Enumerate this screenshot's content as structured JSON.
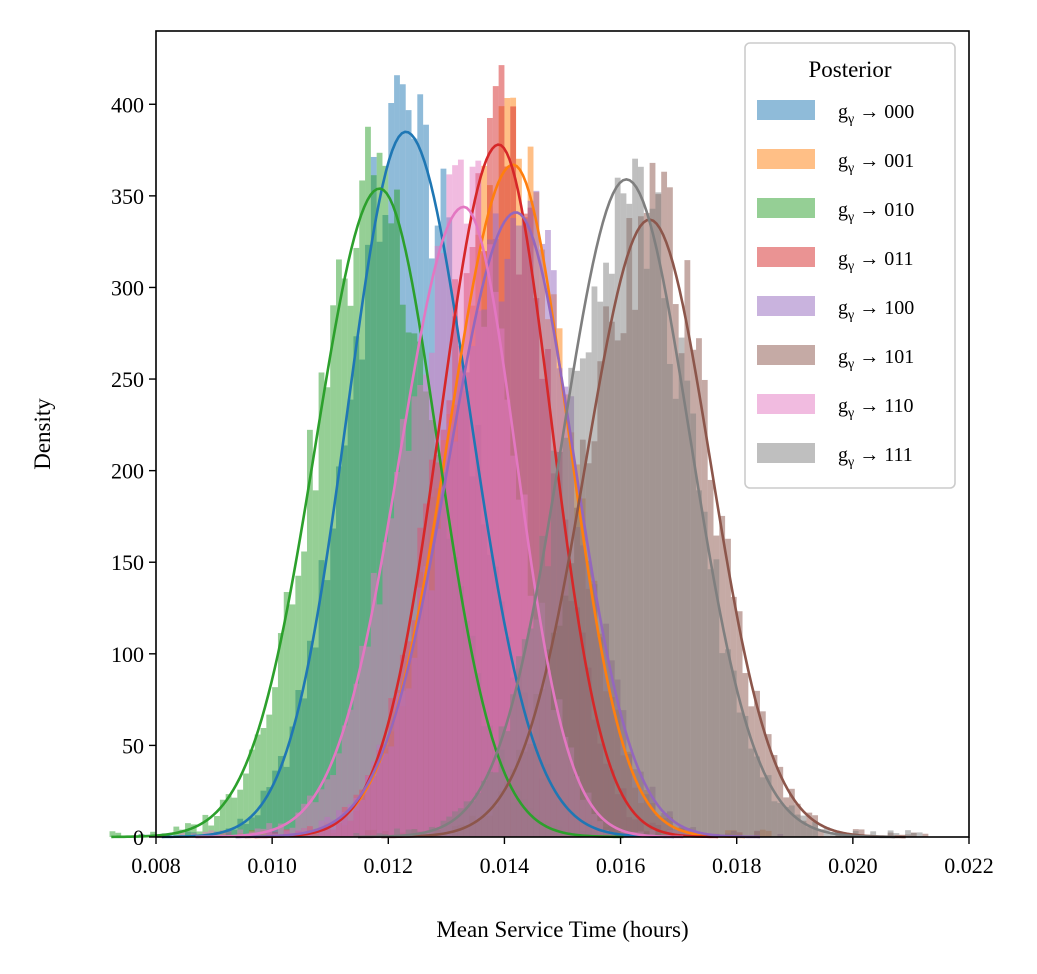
{
  "chart_data": {
    "type": "histogram_kde",
    "xlabel": "Mean Service Time (hours)",
    "ylabel": "Density",
    "xlim": [
      0.008,
      0.022
    ],
    "ylim": [
      0,
      440
    ],
    "xticks": [
      "0.008",
      "0.010",
      "0.012",
      "0.014",
      "0.016",
      "0.018",
      "0.020",
      "0.022"
    ],
    "yticks": [
      "0",
      "50",
      "100",
      "150",
      "200",
      "250",
      "300",
      "350",
      "400"
    ],
    "legend": {
      "title": "Posterior",
      "placement": "upper right"
    },
    "series": [
      {
        "name": "gγ → 000",
        "color": "#1f77b4",
        "mean": 0.0123,
        "peak": 385,
        "sd_left": 0.001,
        "sd_right": 0.0011,
        "hist_max": 420
      },
      {
        "name": "gγ → 001",
        "color": "#ff7f0e",
        "mean": 0.01415,
        "peak": 367,
        "sd_left": 0.0011,
        "sd_right": 0.00095,
        "hist_max": 382
      },
      {
        "name": "gγ → 010",
        "color": "#2ca02c",
        "mean": 0.01185,
        "peak": 354,
        "sd_left": 0.0011,
        "sd_right": 0.001,
        "hist_max": 381
      },
      {
        "name": "gγ → 011",
        "color": "#d62728",
        "mean": 0.0139,
        "peak": 378,
        "sd_left": 0.001,
        "sd_right": 0.0009,
        "hist_max": 390
      },
      {
        "name": "gγ → 100",
        "color": "#9467bd",
        "mean": 0.0142,
        "peak": 341,
        "sd_left": 0.00115,
        "sd_right": 0.001,
        "hist_max": 355
      },
      {
        "name": "gγ → 101",
        "color": "#8c564b",
        "mean": 0.0165,
        "peak": 337,
        "sd_left": 0.0011,
        "sd_right": 0.00105,
        "hist_max": 360
      },
      {
        "name": "gγ → 110",
        "color": "#e377c2",
        "mean": 0.0133,
        "peak": 344,
        "sd_left": 0.0011,
        "sd_right": 0.0009,
        "hist_max": 355
      },
      {
        "name": "gγ → 111",
        "color": "#7f7f7f",
        "mean": 0.0161,
        "peak": 359,
        "sd_left": 0.0011,
        "sd_right": 0.0011,
        "hist_max": 365
      }
    ]
  }
}
